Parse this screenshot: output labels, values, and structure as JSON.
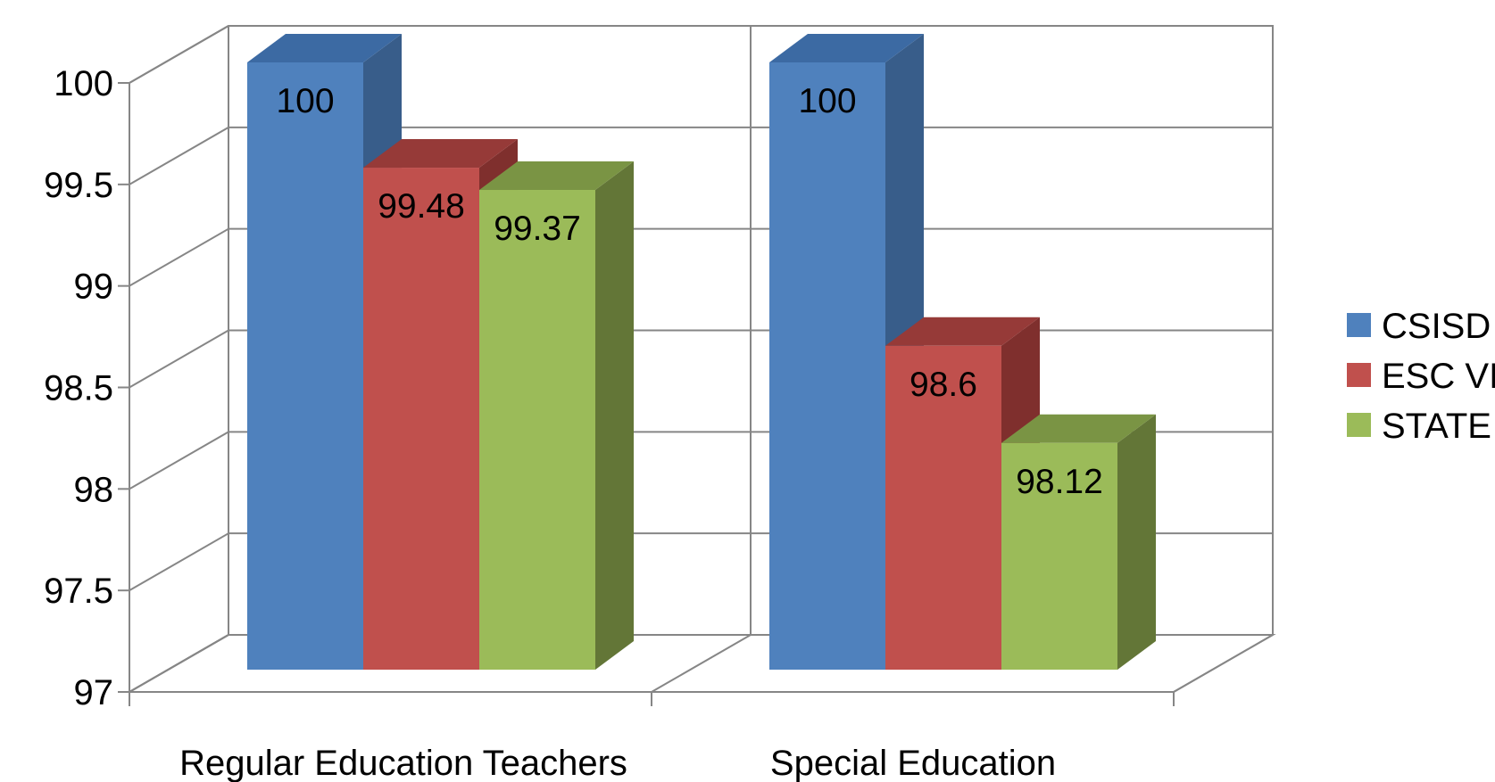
{
  "chart_data": {
    "type": "bar",
    "style": "3d-clustered-column",
    "categories": [
      "Regular Education Teachers",
      "Special Education"
    ],
    "series": [
      {
        "name": "CSISD",
        "values": [
          100,
          100
        ],
        "color": "#4F81BD",
        "side_color": "#385D8A",
        "top_color": "#3C6AA3"
      },
      {
        "name": "ESC VI",
        "values": [
          99.48,
          98.6
        ],
        "color": "#C0504D",
        "side_color": "#7F2F2D",
        "top_color": "#963A38"
      },
      {
        "name": "STATE",
        "values": [
          99.37,
          98.12
        ],
        "color": "#9BBB59",
        "side_color": "#637637",
        "top_color": "#7A9444"
      }
    ],
    "ylim": [
      97,
      100
    ],
    "yticks": [
      97,
      97.5,
      98,
      98.5,
      99,
      99.5,
      100
    ],
    "ytick_labels": [
      "97",
      "97.5",
      "98",
      "98.5",
      "99",
      "99.5",
      "100"
    ],
    "data_labels": [
      [
        "100",
        "100"
      ],
      [
        "99.48",
        "98.6"
      ],
      [
        "99.37",
        "98.12"
      ]
    ],
    "title": "",
    "xlabel": "",
    "ylabel": "",
    "grid": true,
    "legend_position": "right",
    "colors": {
      "grid": "#868686",
      "axis": "#868686"
    }
  }
}
